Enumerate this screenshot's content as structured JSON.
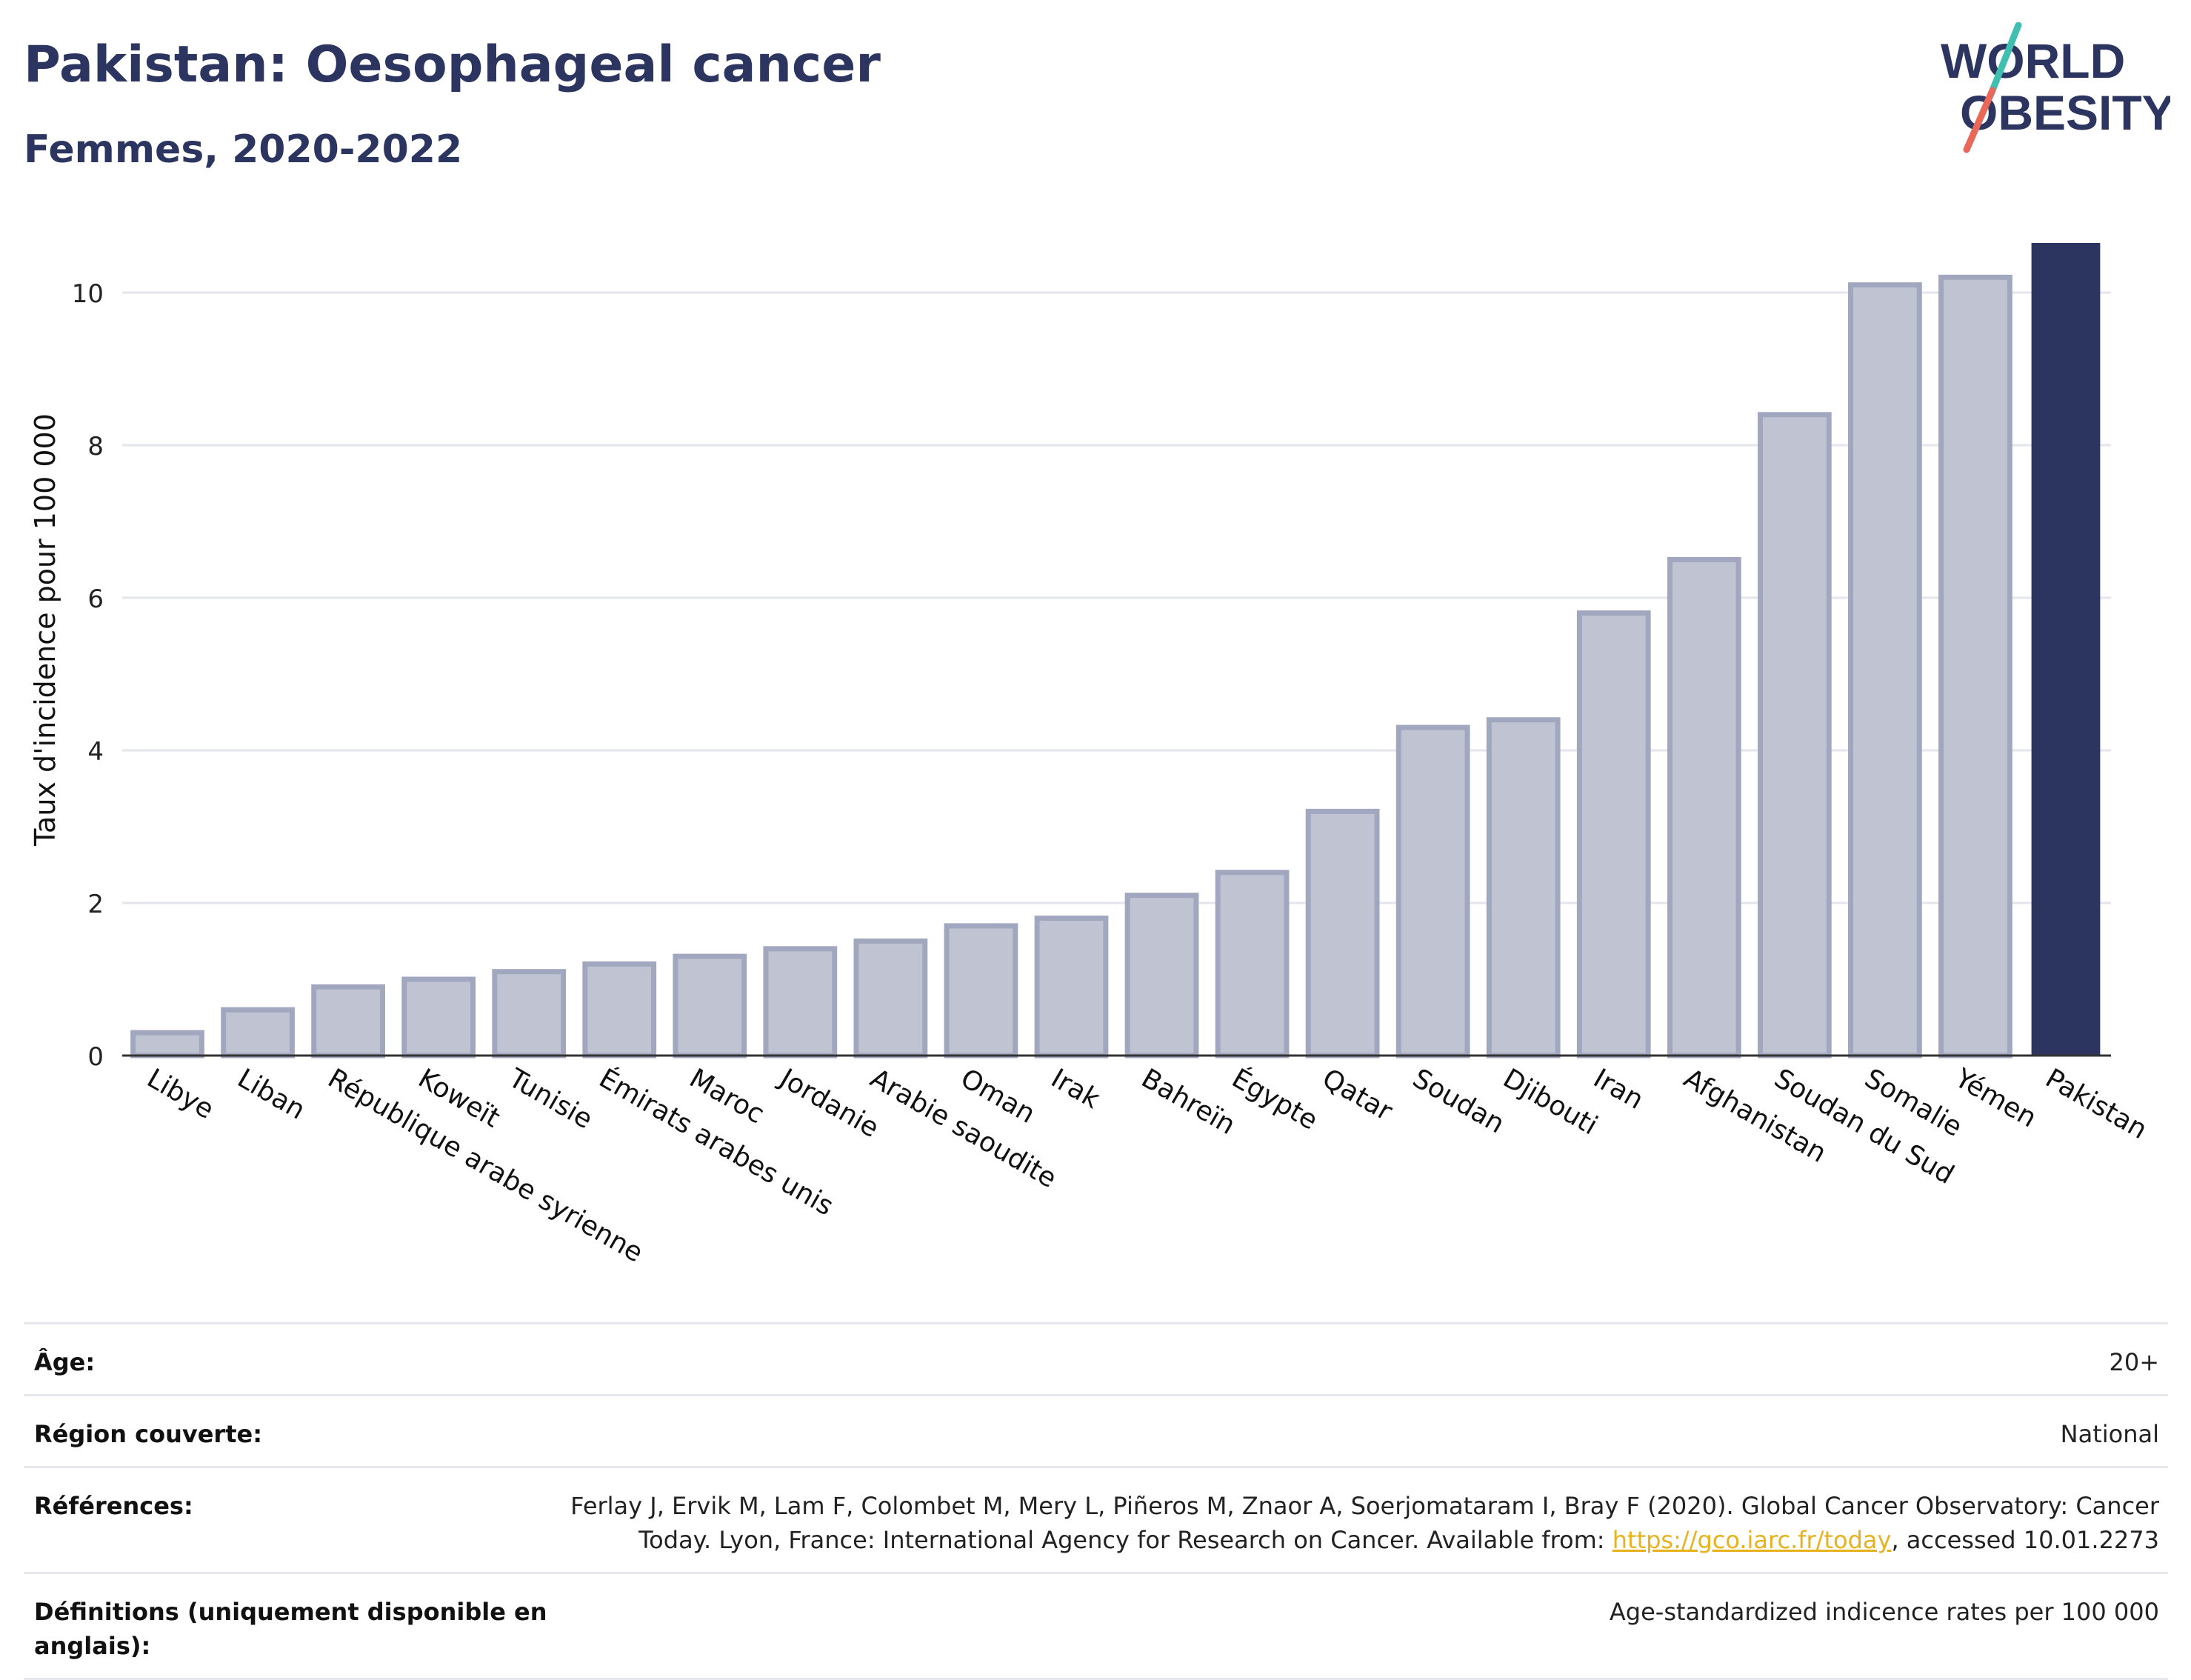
{
  "header": {
    "title": "Pakistan: Oesophageal cancer",
    "subtitle": "Femmes, 2020-2022"
  },
  "logo": {
    "line1": "WORLD",
    "line2": "OBESITY",
    "colors": {
      "text": "#2c3560",
      "slash_teal": "#3fbfb0",
      "slash_coral": "#e8685a"
    }
  },
  "chart_data": {
    "type": "bar",
    "ylabel": "Taux d'incidence pour 100 000",
    "xlabel": "",
    "ylim": [
      0,
      11
    ],
    "yticks": [
      0,
      2,
      4,
      6,
      8,
      10
    ],
    "grid": true,
    "categories": [
      "Libye",
      "Liban",
      "République arabe syrienne",
      "Koweït",
      "Tunisie",
      "Émirats arabes unis",
      "Maroc",
      "Jordanie",
      "Arabie saoudite",
      "Oman",
      "Irak",
      "Bahreïn",
      "Égypte",
      "Qatar",
      "Soudan",
      "Djibouti",
      "Iran",
      "Afghanistan",
      "Soudan du Sud",
      "Somalie",
      "Yémen",
      "Pakistan"
    ],
    "values": [
      0.3,
      0.6,
      0.9,
      1.0,
      1.1,
      1.2,
      1.3,
      1.4,
      1.5,
      1.7,
      1.8,
      2.1,
      2.4,
      3.2,
      4.3,
      4.4,
      5.8,
      6.5,
      8.4,
      10.1,
      10.2,
      10.65
    ],
    "highlight": "Pakistan",
    "colors": {
      "bar": "#c0c4d2",
      "bar_stroke": "#a1a7bf",
      "highlight": "#2c3560",
      "grid": "#e4e6ee",
      "axis": "#333333"
    }
  },
  "meta": {
    "age_label": "Âge:",
    "age_value": "20+",
    "region_label": "Région couverte:",
    "region_value": "National",
    "refs_label": "Références:",
    "refs_text_before": "Ferlay J, Ervik M, Lam F, Colombet M, Mery L, Piñeros M, Znaor A, Soerjomataram I, Bray F (2020). Global Cancer Observatory: Cancer Today. Lyon, France: International Agency for Research on Cancer. Available from: ",
    "refs_link": "https://gco.iarc.fr/today",
    "refs_text_after": ", accessed 10.01.2273",
    "defs_label": "Définitions (uniquement disponible en anglais):",
    "defs_value": "Age-standardized indicence rates per 100 000"
  }
}
